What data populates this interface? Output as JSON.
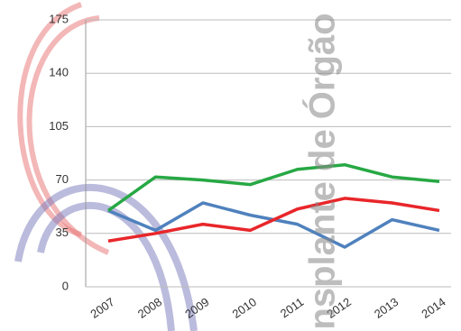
{
  "chart_data": {
    "type": "line",
    "categories": [
      "2007",
      "2008",
      "2009",
      "2010",
      "2011",
      "2012",
      "2013",
      "2014"
    ],
    "series": [
      {
        "color": "#4f81bd",
        "values": [
          50,
          37,
          55,
          47,
          41,
          26,
          44,
          37
        ]
      },
      {
        "color": "#e8262a",
        "values": [
          30,
          35,
          41,
          37,
          51,
          58,
          55,
          50
        ]
      },
      {
        "color": "#27a844",
        "values": [
          50,
          72,
          70,
          67,
          77,
          80,
          72,
          69
        ]
      }
    ],
    "ylim": [
      0,
      175
    ],
    "yticks": [
      0,
      35,
      70,
      105,
      140,
      175
    ],
    "grid": true
  },
  "watermark": "nsplante de Órgão"
}
